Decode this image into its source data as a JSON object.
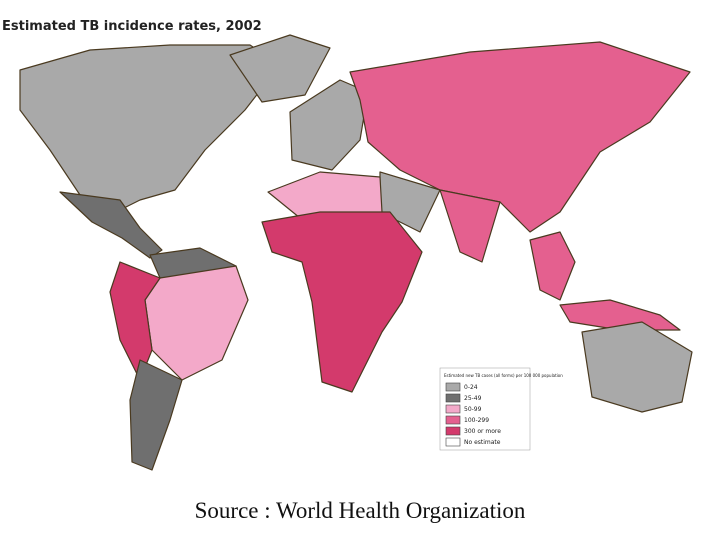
{
  "title": "Estimated TB incidence rates, 2002",
  "legend": {
    "title": "Estimated new TB cases (all forms) per 100 000 population",
    "items": [
      {
        "label": "0-24",
        "color": "#a9a9a9"
      },
      {
        "label": "25-49",
        "color": "#6f6f6f"
      },
      {
        "label": "50-99",
        "color": "#f3a9c9"
      },
      {
        "label": "100-299",
        "color": "#e4608f"
      },
      {
        "label": "300 or more",
        "color": "#d33a6c"
      },
      {
        "label": "No estimate",
        "color": "#ffffff"
      }
    ]
  },
  "source": "Source : World Health Organization"
}
